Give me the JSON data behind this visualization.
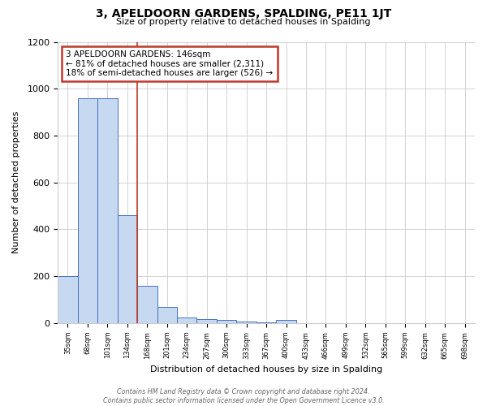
{
  "title": "3, APELDOORN GARDENS, SPALDING, PE11 1JT",
  "subtitle": "Size of property relative to detached houses in Spalding",
  "xlabel": "Distribution of detached houses by size in Spalding",
  "ylabel": "Number of detached properties",
  "footnote": "Contains HM Land Registry data © Crown copyright and database right 2024.\nContains public sector information licensed under the Open Government Licence v3.0.",
  "categories": [
    "35sqm",
    "68sqm",
    "101sqm",
    "134sqm",
    "168sqm",
    "201sqm",
    "234sqm",
    "267sqm",
    "300sqm",
    "333sqm",
    "367sqm",
    "400sqm",
    "433sqm",
    "466sqm",
    "499sqm",
    "532sqm",
    "565sqm",
    "599sqm",
    "632sqm",
    "665sqm",
    "698sqm"
  ],
  "values": [
    200,
    960,
    960,
    460,
    160,
    70,
    25,
    18,
    12,
    8,
    5,
    12,
    0,
    0,
    0,
    0,
    0,
    0,
    0,
    0,
    0
  ],
  "bar_color": "#c6d9f1",
  "bar_edge_color": "#4472c4",
  "vline_x": 3.5,
  "vline_color": "#c0392b",
  "annotation_line1": "3 APELDOORN GARDENS: 146sqm",
  "annotation_line2": "← 81% of detached houses are smaller (2,311)",
  "annotation_line3": "18% of semi-detached houses are larger (526) →",
  "annotation_box_color": "#c0392b",
  "ylim": [
    0,
    1200
  ],
  "yticks": [
    0,
    200,
    400,
    600,
    800,
    1000,
    1200
  ],
  "background_color": "#ffffff",
  "grid_color": "#cccccc"
}
